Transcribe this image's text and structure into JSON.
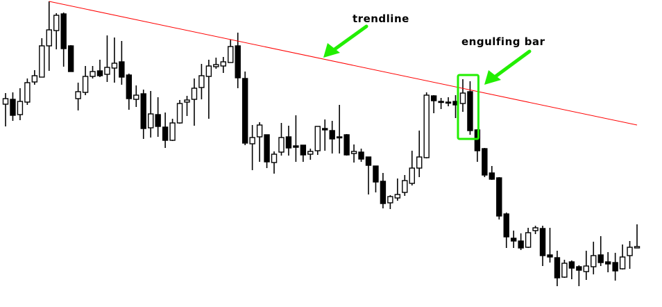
{
  "chart_data": {
    "type": "candlestick",
    "title": "",
    "xlabel": "",
    "ylabel": "",
    "grid": false,
    "legend": "none",
    "fields": [
      "open",
      "high",
      "low",
      "close"
    ],
    "candles": [
      [
        350,
        366,
        318,
        358
      ],
      [
        357,
        367,
        326,
        334
      ],
      [
        335,
        373,
        327,
        354
      ],
      [
        353,
        387,
        349,
        381
      ],
      [
        382,
        399,
        378,
        391
      ],
      [
        389,
        445,
        389,
        434
      ],
      [
        434,
        498,
        398,
        457
      ],
      [
        456,
        481,
        429,
        478
      ],
      [
        480,
        482,
        404,
        430
      ],
      [
        434,
        435,
        397,
        397
      ],
      [
        358,
        381,
        341,
        368
      ],
      [
        367,
        405,
        363,
        390
      ],
      [
        390,
        405,
        387,
        397
      ],
      [
        398,
        414,
        389,
        391
      ],
      [
        393,
        449,
        382,
        403
      ],
      [
        402,
        446,
        381,
        409
      ],
      [
        411,
        441,
        378,
        389
      ],
      [
        392,
        394,
        342,
        358
      ],
      [
        357,
        377,
        346,
        363
      ],
      [
        365,
        371,
        300,
        315
      ],
      [
        316,
        369,
        302,
        336
      ],
      [
        335,
        360,
        303,
        318
      ],
      [
        317,
        338,
        287,
        298
      ],
      [
        298,
        329,
        297,
        323
      ],
      [
        323,
        356,
        322,
        351
      ],
      [
        353,
        362,
        333,
        356
      ],
      [
        357,
        387,
        319,
        373
      ],
      [
        374,
        408,
        357,
        391
      ],
      [
        390,
        414,
        329,
        405
      ],
      [
        404,
        417,
        401,
        407
      ],
      [
        405,
        418,
        395,
        411
      ],
      [
        410,
        443,
        410,
        433
      ],
      [
        434,
        453,
        373,
        388
      ],
      [
        387,
        397,
        291,
        294
      ],
      [
        293,
        320,
        255,
        302
      ],
      [
        303,
        324,
        267,
        320
      ],
      [
        306,
        306,
        258,
        267
      ],
      [
        266,
        282,
        250,
        278
      ],
      [
        281,
        323,
        276,
        302
      ],
      [
        303,
        319,
        276,
        287
      ],
      [
        290,
        334,
        267,
        288
      ],
      [
        291,
        291,
        267,
        277
      ],
      [
        278,
        286,
        270,
        282
      ],
      [
        283,
        318,
        277,
        318
      ],
      [
        315,
        328,
        283,
        313
      ],
      [
        312,
        326,
        279,
        300
      ],
      [
        303,
        349,
        279,
        302
      ],
      [
        306,
        307,
        276,
        277
      ],
      [
        279,
        292,
        266,
        282
      ],
      [
        281,
        286,
        267,
        271
      ],
      [
        274,
        274,
        220,
        262
      ],
      [
        261,
        261,
        223,
        238
      ],
      [
        239,
        251,
        200,
        207
      ],
      [
        208,
        219,
        199,
        217
      ],
      [
        215,
        243,
        211,
        220
      ],
      [
        223,
        248,
        218,
        240
      ],
      [
        236,
        283,
        233,
        258
      ],
      [
        258,
        312,
        245,
        274
      ],
      [
        273,
        367,
        272,
        363
      ],
      [
        362,
        363,
        337,
        355
      ],
      [
        354,
        359,
        343,
        353
      ],
      [
        353,
        360,
        347,
        352
      ],
      [
        354,
        363,
        330,
        349
      ],
      [
        351,
        386,
        339,
        366
      ],
      [
        368,
        383,
        306,
        312
      ],
      [
        313,
        314,
        267,
        283
      ],
      [
        286,
        287,
        245,
        248
      ],
      [
        251,
        261,
        241,
        242
      ],
      [
        244,
        245,
        184,
        189
      ],
      [
        192,
        194,
        143,
        159
      ],
      [
        157,
        168,
        143,
        153
      ],
      [
        153,
        164,
        140,
        143
      ],
      [
        144,
        172,
        143,
        165
      ],
      [
        168,
        175,
        163,
        172
      ],
      [
        171,
        175,
        117,
        132
      ],
      [
        133,
        172,
        122,
        130
      ],
      [
        129,
        139,
        88,
        100
      ],
      [
        101,
        126,
        100,
        121
      ],
      [
        123,
        125,
        98,
        114
      ],
      [
        116,
        118,
        88,
        111
      ],
      [
        109,
        139,
        97,
        117
      ],
      [
        116,
        152,
        105,
        132
      ],
      [
        133,
        160,
        117,
        122
      ],
      [
        123,
        137,
        108,
        120
      ],
      [
        122,
        136,
        96,
        110
      ],
      [
        113,
        148,
        112,
        130
      ],
      [
        132,
        153,
        113,
        144
      ],
      [
        143,
        177,
        143,
        145
      ]
    ],
    "trendline": {
      "from": {
        "candle": 7,
        "price": 498
      },
      "to": {
        "candle": 88,
        "price": 320
      },
      "color": "#ff0000"
    },
    "highlight": {
      "candles": [
        64,
        65
      ],
      "color": "#22ee00"
    },
    "annotations": [
      {
        "text": "trendline",
        "color": "#22ee00"
      },
      {
        "text": "engulfing bar",
        "color": "#22ee00"
      }
    ],
    "colors": {
      "bull": "#ffffff",
      "bear": "#000000",
      "wick": "#000000"
    }
  }
}
